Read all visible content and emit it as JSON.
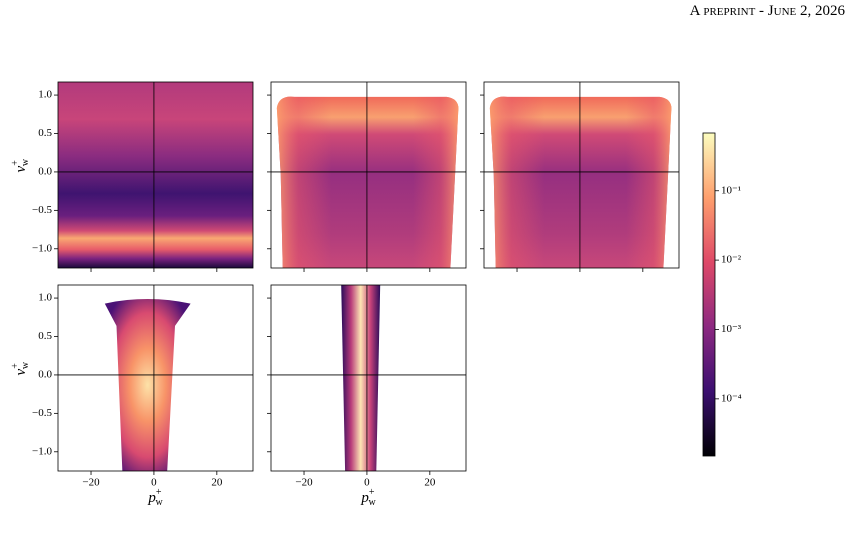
{
  "header": {
    "text": "A preprint - June 2, 2026"
  },
  "chart_data": [
    {
      "type": "heatmap",
      "xlim": [
        -30.5,
        31.5
      ],
      "ylim": [
        -1.25,
        1.17
      ],
      "xticks": [
        {
          "value": -20,
          "label": "−20"
        },
        0,
        20
      ],
      "yticks": [
        {
          "value": -1.0,
          "label": "−1.0"
        },
        {
          "value": -0.5,
          "label": "−0.5"
        },
        {
          "value": 0.0,
          "label": "0.0"
        },
        {
          "value": 0.5,
          "label": "0.5"
        },
        {
          "value": 1.0,
          "label": "1.0"
        }
      ],
      "tick_labels": [
        "y"
      ],
      "vlines": [
        0
      ],
      "hlines": [
        0
      ],
      "ylabel": {
        "base": "v",
        "sup": "+",
        "sub": "w"
      }
    },
    {
      "type": "heatmap",
      "xlim": [
        -30.5,
        31.5
      ],
      "ylim": [
        -1.25,
        1.17
      ],
      "xticks": [
        -20,
        0,
        20
      ],
      "yticks": [
        -1.0,
        -0.5,
        0.0,
        0.5,
        1.0
      ],
      "tick_labels": [],
      "vlines": [
        0
      ],
      "hlines": [
        0
      ]
    },
    {
      "type": "heatmap",
      "xlim": [
        -30.5,
        31.5
      ],
      "ylim": [
        -1.25,
        1.17
      ],
      "xticks": [
        -20,
        0,
        20
      ],
      "yticks": [
        -1.0,
        -0.5,
        0.0,
        0.5,
        1.0
      ],
      "tick_labels": [],
      "vlines": [
        0
      ],
      "hlines": [
        0
      ]
    },
    {
      "type": "heatmap",
      "xlim": [
        -30.5,
        31.5
      ],
      "ylim": [
        -1.25,
        1.17
      ],
      "xticks": [
        {
          "value": -20,
          "label": "−20"
        },
        0,
        20
      ],
      "yticks": [
        {
          "value": -1.0,
          "label": "−1.0"
        },
        {
          "value": -0.5,
          "label": "−0.5"
        },
        {
          "value": 0.0,
          "label": "0.0"
        },
        {
          "value": 0.5,
          "label": "0.5"
        },
        {
          "value": 1.0,
          "label": "1.0"
        }
      ],
      "tick_labels": [
        "x",
        "y"
      ],
      "vlines": [
        0
      ],
      "hlines": [
        0
      ],
      "xlabel": {
        "base": "p",
        "sup": "+",
        "sub": "w"
      },
      "ylabel": {
        "base": "v",
        "sup": "+",
        "sub": "w"
      }
    },
    {
      "type": "heatmap",
      "xlim": [
        -30.5,
        31.5
      ],
      "ylim": [
        -1.25,
        1.17
      ],
      "xticks": [
        {
          "value": -20,
          "label": "−20"
        },
        0,
        20
      ],
      "yticks": [
        -1.0,
        -0.5,
        0.0,
        0.5,
        1.0
      ],
      "tick_labels": [
        "x"
      ],
      "vlines": [
        0
      ],
      "hlines": [
        0
      ],
      "xlabel": {
        "base": "p",
        "sup": "+",
        "sub": "w"
      }
    },
    {
      "type": "colorbar",
      "scale": "log",
      "clim": [
        1.5e-05,
        0.68
      ],
      "colors": [
        "#000004",
        "#3b0f70",
        "#8c2981",
        "#de4968",
        "#fe9f6d",
        "#fcfdbf"
      ],
      "ticks": [
        {
          "value": 0.0001,
          "label": "10⁻⁴"
        },
        {
          "value": 0.001,
          "label": "10⁻³"
        },
        {
          "value": 0.01,
          "label": "10⁻²"
        },
        {
          "value": 0.1,
          "label": "10⁻¹"
        }
      ]
    }
  ]
}
